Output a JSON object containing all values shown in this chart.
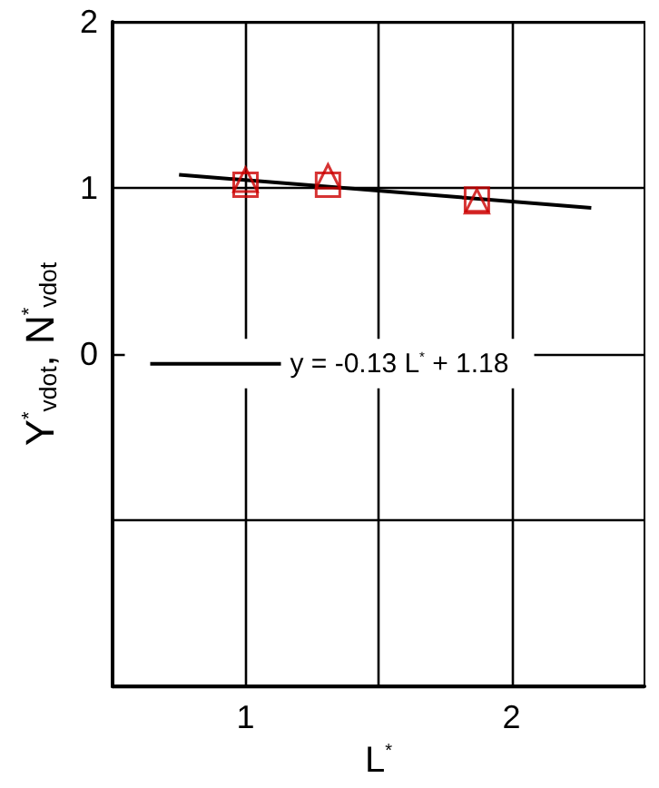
{
  "chart_data": {
    "type": "scatter",
    "xlabel": "L$^{*}$",
    "ylabel": "Y$^{*}$$_{vdot}$, N$^{*}$$_{vdot}$",
    "xlim": [
      0.5,
      2.5
    ],
    "xticks": [
      1,
      {
        "value": 1.5,
        "label": null
      },
      2
    ],
    "ylim": [
      -2,
      2
    ],
    "yticks": [
      {
        "value": -2,
        "label": null
      },
      {
        "value": -1,
        "label": null
      },
      0,
      1,
      2
    ],
    "grid": true,
    "legend": "center",
    "series": [
      {
        "marker": "square",
        "color": "#cc0000",
        "x": [
          1.0,
          1.31,
          1.87
        ],
        "values": [
          1.02,
          1.02,
          0.93
        ]
      },
      {
        "marker": "triangle",
        "color": "#cc0000",
        "x": [
          1.0,
          1.31,
          1.87
        ],
        "values": [
          1.05,
          1.07,
          0.92
        ]
      },
      {
        "type": "line",
        "name": "y = -0.13 L$^{*}$ + 1.18",
        "color": "#000000",
        "marker": "none",
        "line_style": "solid",
        "x": [
          0.75,
          2.3
        ],
        "values": [
          1.08,
          0.88
        ]
      }
    ]
  }
}
